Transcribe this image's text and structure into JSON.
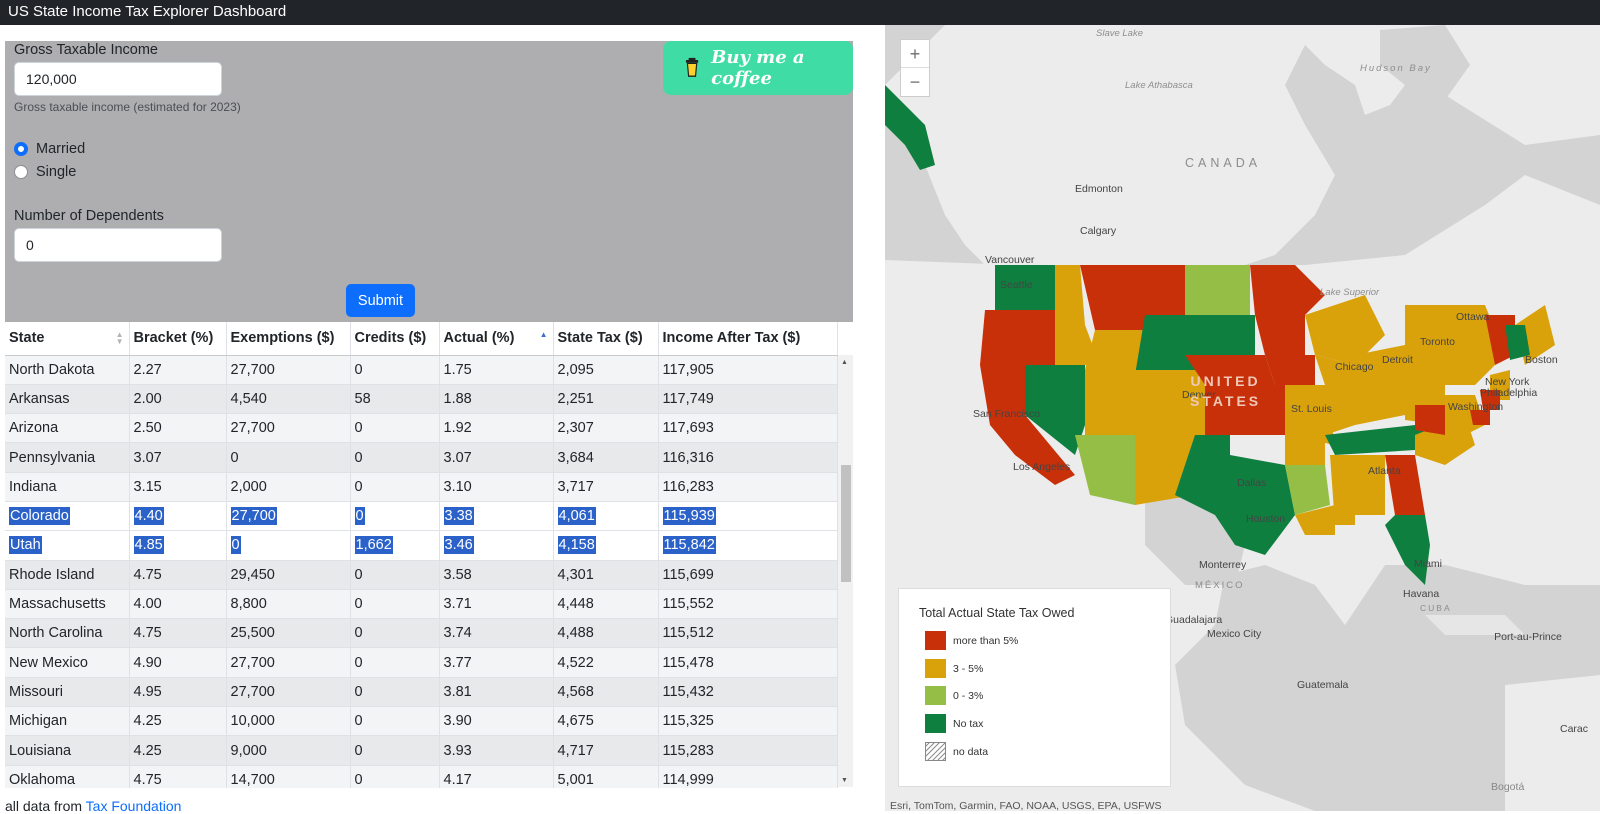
{
  "app": {
    "title": "US State Income Tax Explorer Dashboard"
  },
  "form": {
    "income_label": "Gross Taxable Income",
    "income_value": "120,000",
    "income_help": "Gross taxable income (estimated for 2023)",
    "filing_options": [
      {
        "label": "Married",
        "checked": true
      },
      {
        "label": "Single",
        "checked": false
      }
    ],
    "dependents_label": "Number of Dependents",
    "dependents_value": "0",
    "submit_label": "Submit",
    "coffee_label": "Buy me a coffee"
  },
  "table": {
    "headers": [
      "State",
      "Bracket (%)",
      "Exemptions ($)",
      "Credits ($)",
      "Actual (%)",
      "State Tax ($)",
      "Income After Tax ($)"
    ],
    "sorted_column": "Actual (%)",
    "rows": [
      [
        "North Dakota",
        "2.27",
        "27,700",
        "0",
        "1.75",
        "2,095",
        "117,905"
      ],
      [
        "Arkansas",
        "2.00",
        "4,540",
        "58",
        "1.88",
        "2,251",
        "117,749"
      ],
      [
        "Arizona",
        "2.50",
        "27,700",
        "0",
        "1.92",
        "2,307",
        "117,693"
      ],
      [
        "Pennsylvania",
        "3.07",
        "0",
        "0",
        "3.07",
        "3,684",
        "116,316"
      ],
      [
        "Indiana",
        "3.15",
        "2,000",
        "0",
        "3.10",
        "3,717",
        "116,283"
      ],
      [
        "Colorado",
        "4.40",
        "27,700",
        "0",
        "3.38",
        "4,061",
        "115,939"
      ],
      [
        "Utah",
        "4.85",
        "0",
        "1,662",
        "3.46",
        "4,158",
        "115,842"
      ],
      [
        "Rhode Island",
        "4.75",
        "29,450",
        "0",
        "3.58",
        "4,301",
        "115,699"
      ],
      [
        "Massachusetts",
        "4.00",
        "8,800",
        "0",
        "3.71",
        "4,448",
        "115,552"
      ],
      [
        "North Carolina",
        "4.75",
        "25,500",
        "0",
        "3.74",
        "4,488",
        "115,512"
      ],
      [
        "New Mexico",
        "4.90",
        "27,700",
        "0",
        "3.77",
        "4,522",
        "115,478"
      ],
      [
        "Missouri",
        "4.95",
        "27,700",
        "0",
        "3.81",
        "4,568",
        "115,432"
      ],
      [
        "Michigan",
        "4.25",
        "10,000",
        "0",
        "3.90",
        "4,675",
        "115,325"
      ],
      [
        "Louisiana",
        "4.25",
        "9,000",
        "0",
        "3.93",
        "4,717",
        "115,283"
      ],
      [
        "Oklahoma",
        "4.75",
        "14,700",
        "0",
        "4.17",
        "5,001",
        "114,999"
      ]
    ],
    "selected_rows": [
      "Colorado",
      "Utah"
    ]
  },
  "footer": {
    "prefix": "all data from ",
    "link": "Tax Foundation"
  },
  "map": {
    "zoom_in": "+",
    "zoom_out": "−",
    "legend_title": "Total Actual State Tax Owed",
    "legend": [
      {
        "label": "more than 5%",
        "color": "#c8300a"
      },
      {
        "label": "3 - 5%",
        "color": "#d9a20a"
      },
      {
        "label": "0 - 3%",
        "color": "#94be45"
      },
      {
        "label": "No tax",
        "color": "#0f7f3f"
      },
      {
        "label": "no data",
        "color": "hatch"
      }
    ],
    "places": {
      "canada": "CANADA",
      "hudson_bay": "Hudson Bay",
      "lake_athabasca": "Lake Athabasca",
      "slave_lake": "Slave Lake",
      "lake_superior": "Lake Superior",
      "edmonton": "Edmonton",
      "calgary": "Calgary",
      "vancouver": "Vancouver",
      "seattle": "Seattle",
      "ottawa": "Ottawa",
      "toronto": "Toronto",
      "boston": "Boston",
      "new_york": "New York",
      "philadelphia": "Philadelphia",
      "washington": "Washington",
      "detroit": "Detroit",
      "chicago": "Chicago",
      "denver": "Denver",
      "st_louis": "St. Louis",
      "san_francisco": "San Francisco",
      "los_angeles": "Los Angeles",
      "dallas": "Dallas",
      "houston": "Houston",
      "atlanta": "Atlanta",
      "miami": "Miami",
      "monterrey": "Monterrey",
      "mexico": "MÉXICO",
      "guadalajara": "Guadalajara",
      "mexico_city": "Mexico City",
      "havana": "Havana",
      "cuba": "CUBA",
      "port_au_prince": "Port-au-Prince",
      "guatemala": "Guatemala",
      "bogota": "Bogotá",
      "caracas": "Carac",
      "us_1": "UNITED",
      "us_2": "STATES"
    },
    "attribution": "Esri, TomTom, Garmin, FAO, NOAA, USGS, EPA, USFWS"
  }
}
